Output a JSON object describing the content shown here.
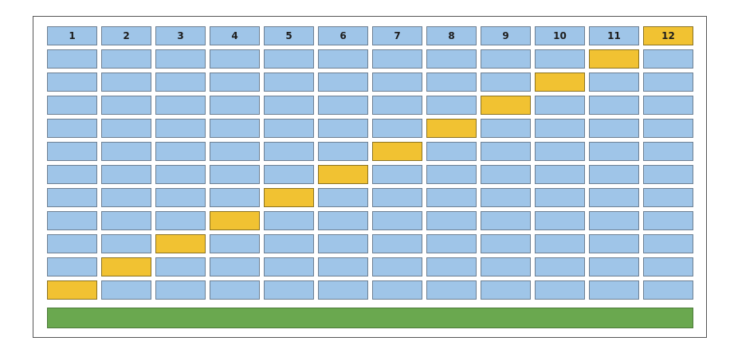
{
  "grid": {
    "columns": 12,
    "rows": 12,
    "header_labels": [
      "1",
      "2",
      "3",
      "4",
      "5",
      "6",
      "7",
      "8",
      "9",
      "10",
      "11",
      "12"
    ],
    "highlighted_header_column": 12,
    "diagonal_highlight_columns_by_row": [
      11,
      10,
      9,
      8,
      7,
      6,
      5,
      4,
      3,
      2,
      1
    ],
    "colors": {
      "cell": "#9fc5e8",
      "highlight": "#f1c232",
      "bar": "#6aa84f"
    }
  }
}
